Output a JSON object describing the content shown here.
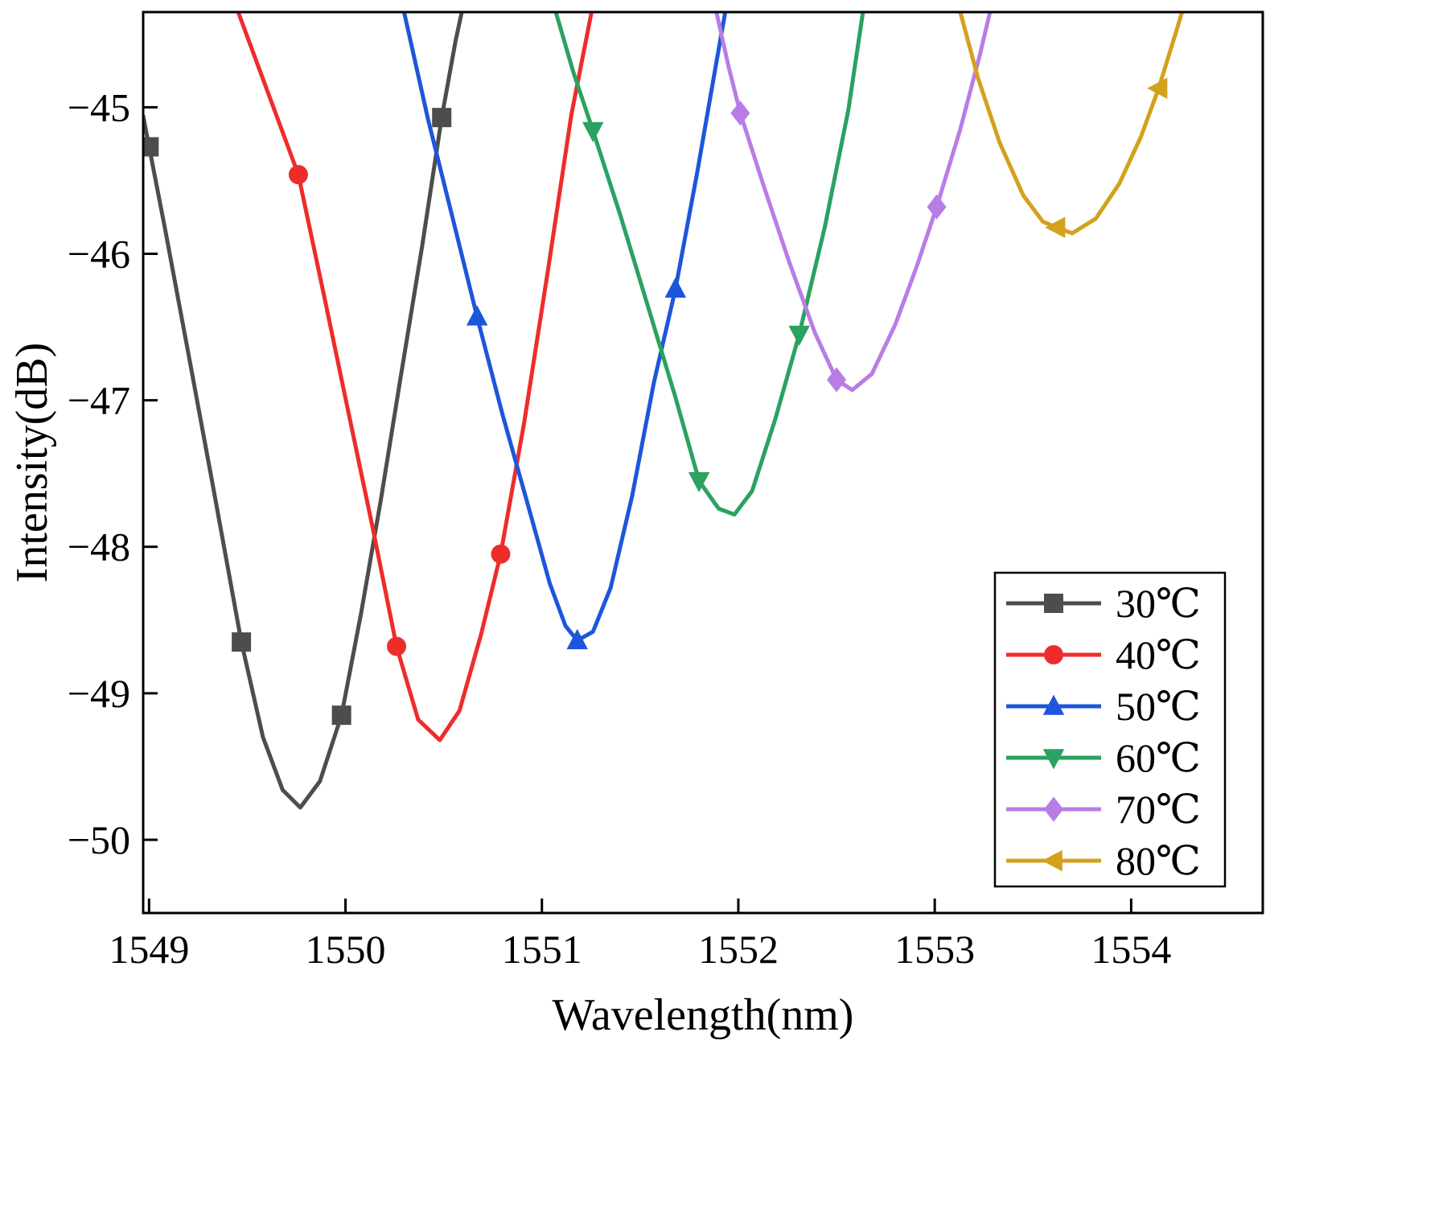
{
  "chart_data": {
    "type": "line",
    "title": "",
    "xlabel": "Wavelength(nm)",
    "ylabel": "Intensity(dB)",
    "xlim": [
      1548.97,
      1554.67
    ],
    "ylim": [
      -50.5,
      -44.35
    ],
    "xticks": [
      1549,
      1550,
      1551,
      1552,
      1553,
      1554
    ],
    "yticks": [
      -45,
      -46,
      -47,
      -48,
      -49,
      -50
    ],
    "grid": false,
    "frame_color": "#000000",
    "legend": {
      "position": "lower-right",
      "entries": [
        "30℃",
        "40℃",
        "50℃",
        "60℃",
        "70℃",
        "80℃"
      ]
    },
    "series": [
      {
        "name": "30℃",
        "color": "#4d4d4d",
        "marker": "square",
        "points": [
          [
            1548.97,
            -45.06
          ],
          [
            1549.08,
            -45.82
          ],
          [
            1549.2,
            -46.68
          ],
          [
            1549.33,
            -47.62
          ],
          [
            1549.47,
            -48.65
          ],
          [
            1549.58,
            -49.3
          ],
          [
            1549.68,
            -49.66
          ],
          [
            1549.77,
            -49.78
          ],
          [
            1549.87,
            -49.6
          ],
          [
            1549.98,
            -49.15
          ],
          [
            1550.08,
            -48.45
          ],
          [
            1550.18,
            -47.68
          ],
          [
            1550.28,
            -46.85
          ],
          [
            1550.39,
            -45.95
          ],
          [
            1550.49,
            -45.07
          ],
          [
            1550.56,
            -44.55
          ],
          [
            1550.6,
            -44.3
          ]
        ],
        "marker_points": [
          [
            1549.0,
            -45.27
          ],
          [
            1549.47,
            -48.65
          ],
          [
            1549.98,
            -49.15
          ],
          [
            1550.49,
            -45.07
          ]
        ]
      },
      {
        "name": "40℃",
        "color": "#ee2c2c",
        "marker": "circle",
        "points": [
          [
            1549.44,
            -44.3
          ],
          [
            1549.6,
            -44.88
          ],
          [
            1549.76,
            -45.46
          ],
          [
            1549.89,
            -46.28
          ],
          [
            1550.01,
            -47.05
          ],
          [
            1550.14,
            -47.88
          ],
          [
            1550.26,
            -48.68
          ],
          [
            1550.37,
            -49.18
          ],
          [
            1550.48,
            -49.32
          ],
          [
            1550.58,
            -49.12
          ],
          [
            1550.69,
            -48.6
          ],
          [
            1550.79,
            -48.05
          ],
          [
            1550.91,
            -47.15
          ],
          [
            1551.03,
            -46.12
          ],
          [
            1551.15,
            -45.05
          ],
          [
            1551.26,
            -44.3
          ]
        ],
        "marker_points": [
          [
            1549.76,
            -45.46
          ],
          [
            1550.26,
            -48.68
          ],
          [
            1550.79,
            -48.05
          ]
        ]
      },
      {
        "name": "50℃",
        "color": "#1d56db",
        "marker": "triangle-up",
        "points": [
          [
            1550.29,
            -44.3
          ],
          [
            1550.42,
            -45.08
          ],
          [
            1550.55,
            -45.78
          ],
          [
            1550.67,
            -46.43
          ],
          [
            1550.8,
            -47.1
          ],
          [
            1550.93,
            -47.72
          ],
          [
            1551.04,
            -48.25
          ],
          [
            1551.12,
            -48.54
          ],
          [
            1551.18,
            -48.64
          ],
          [
            1551.26,
            -48.58
          ],
          [
            1551.35,
            -48.28
          ],
          [
            1551.46,
            -47.65
          ],
          [
            1551.57,
            -46.88
          ],
          [
            1551.68,
            -46.24
          ],
          [
            1551.79,
            -45.45
          ],
          [
            1551.89,
            -44.68
          ],
          [
            1551.94,
            -44.3
          ]
        ],
        "marker_points": [
          [
            1550.67,
            -46.43
          ],
          [
            1551.18,
            -48.64
          ],
          [
            1551.68,
            -46.24
          ]
        ]
      },
      {
        "name": "60℃",
        "color": "#2aa260",
        "marker": "triangle-down",
        "points": [
          [
            1551.06,
            -44.3
          ],
          [
            1551.16,
            -44.76
          ],
          [
            1551.26,
            -45.16
          ],
          [
            1551.4,
            -45.74
          ],
          [
            1551.54,
            -46.36
          ],
          [
            1551.68,
            -46.98
          ],
          [
            1551.8,
            -47.55
          ],
          [
            1551.9,
            -47.74
          ],
          [
            1551.98,
            -47.78
          ],
          [
            1552.07,
            -47.62
          ],
          [
            1552.19,
            -47.12
          ],
          [
            1552.31,
            -46.55
          ],
          [
            1552.44,
            -45.82
          ],
          [
            1552.56,
            -45.02
          ],
          [
            1552.64,
            -44.3
          ]
        ],
        "marker_points": [
          [
            1551.26,
            -45.16
          ],
          [
            1551.8,
            -47.55
          ],
          [
            1552.31,
            -46.55
          ]
        ]
      },
      {
        "name": "70℃",
        "color": "#b87de5",
        "marker": "diamond",
        "points": [
          [
            1551.88,
            -44.3
          ],
          [
            1551.95,
            -44.72
          ],
          [
            1552.01,
            -45.04
          ],
          [
            1552.13,
            -45.54
          ],
          [
            1552.26,
            -46.06
          ],
          [
            1552.39,
            -46.54
          ],
          [
            1552.5,
            -46.86
          ],
          [
            1552.58,
            -46.93
          ],
          [
            1552.68,
            -46.82
          ],
          [
            1552.8,
            -46.48
          ],
          [
            1552.91,
            -46.08
          ],
          [
            1553.01,
            -45.68
          ],
          [
            1553.13,
            -45.15
          ],
          [
            1553.23,
            -44.64
          ],
          [
            1553.29,
            -44.3
          ]
        ],
        "marker_points": [
          [
            1552.01,
            -45.04
          ],
          [
            1552.5,
            -46.86
          ],
          [
            1553.01,
            -45.68
          ]
        ]
      },
      {
        "name": "80℃",
        "color": "#d4a11d",
        "marker": "triangle-left",
        "points": [
          [
            1553.12,
            -44.3
          ],
          [
            1553.22,
            -44.8
          ],
          [
            1553.33,
            -45.24
          ],
          [
            1553.45,
            -45.6
          ],
          [
            1553.55,
            -45.78
          ],
          [
            1553.62,
            -45.82
          ],
          [
            1553.7,
            -45.86
          ],
          [
            1553.82,
            -45.76
          ],
          [
            1553.94,
            -45.52
          ],
          [
            1554.05,
            -45.2
          ],
          [
            1554.14,
            -44.87
          ],
          [
            1554.23,
            -44.48
          ],
          [
            1554.27,
            -44.3
          ]
        ],
        "marker_points": [
          [
            1553.62,
            -45.82
          ],
          [
            1554.14,
            -44.87
          ]
        ]
      }
    ]
  }
}
